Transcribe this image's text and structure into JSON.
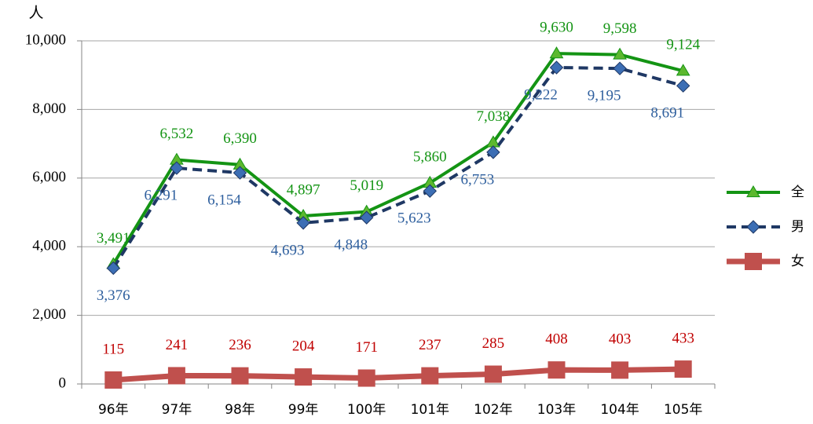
{
  "chart_data": {
    "type": "line",
    "y_label": "人",
    "categories": [
      "96年",
      "97年",
      "98年",
      "99年",
      "100年",
      "101年",
      "102年",
      "103年",
      "104年",
      "105年"
    ],
    "series": [
      {
        "name": "全",
        "color": "#149414",
        "marker": "triangle",
        "marker_color": "#5cb82e",
        "dash": false,
        "values": [
          3491,
          6532,
          6390,
          4897,
          5019,
          5860,
          7038,
          9630,
          9598,
          9124
        ],
        "value_labels": [
          "3,491",
          "6,532",
          "6,390",
          "4,897",
          "5,019",
          "5,860",
          "7,038",
          "9,630",
          "9,598",
          "9,124"
        ]
      },
      {
        "name": "男",
        "color": "#1f3864",
        "marker": "diamond",
        "marker_color": "#3c6eb4",
        "dash": true,
        "values": [
          3376,
          6291,
          6154,
          4693,
          4848,
          5623,
          6753,
          9222,
          9195,
          8691
        ],
        "value_labels": [
          "3,376",
          "6,291",
          "6,154",
          "4,693",
          "4,848",
          "5,623",
          "6,753",
          "9,222",
          "9,195",
          "8,691"
        ]
      },
      {
        "name": "女",
        "color": "#c0504d",
        "marker": "square",
        "marker_color": "#c0504d",
        "dash": false,
        "values": [
          115,
          241,
          236,
          204,
          171,
          237,
          285,
          408,
          403,
          433
        ]
      }
    ],
    "ylim": [
      0,
      10000
    ],
    "yticks": [
      0,
      {
        "value": 2000,
        "label": "2,000"
      },
      {
        "value": 4000,
        "label": "4,000"
      },
      {
        "value": 6000,
        "label": "6,000"
      },
      {
        "value": 8000,
        "label": "8,000"
      },
      {
        "value": 10000,
        "label": "10,000"
      }
    ],
    "grid": true,
    "legend": "right"
  }
}
